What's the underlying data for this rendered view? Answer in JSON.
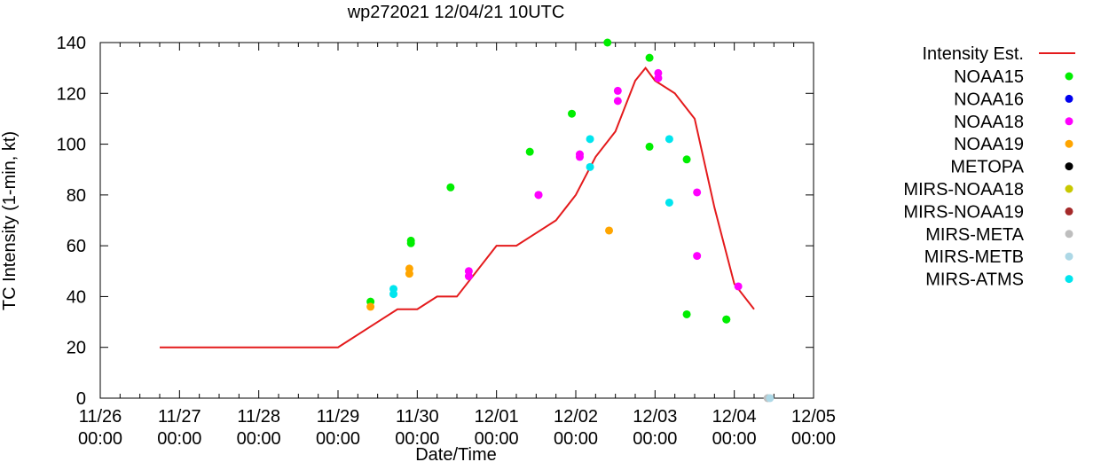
{
  "chart_data": {
    "type": "scatter",
    "title": "wp272021 12/04/21 10UTC",
    "xlabel": "Date/Time",
    "ylabel": "TC Intensity (1-min, kt)",
    "ylim": [
      0,
      140
    ],
    "yticks": [
      0,
      20,
      40,
      60,
      80,
      100,
      120,
      140
    ],
    "xlim_days": [
      0,
      9
    ],
    "xticks": [
      {
        "day": 0,
        "date": "11/26",
        "time": "00:00"
      },
      {
        "day": 1,
        "date": "11/27",
        "time": "00:00"
      },
      {
        "day": 2,
        "date": "11/28",
        "time": "00:00"
      },
      {
        "day": 3,
        "date": "11/29",
        "time": "00:00"
      },
      {
        "day": 4,
        "date": "11/30",
        "time": "00:00"
      },
      {
        "day": 5,
        "date": "12/01",
        "time": "00:00"
      },
      {
        "day": 6,
        "date": "12/02",
        "time": "00:00"
      },
      {
        "day": 7,
        "date": "12/03",
        "time": "00:00"
      },
      {
        "day": 8,
        "date": "12/04",
        "time": "00:00"
      },
      {
        "day": 9,
        "date": "12/05",
        "time": "00:00"
      }
    ],
    "line": {
      "name": "Intensity Est.",
      "color": "#e41a1c",
      "x": [
        0.75,
        2.0,
        3.0,
        3.5,
        3.75,
        4.0,
        4.25,
        4.5,
        5.0,
        5.25,
        5.5,
        5.75,
        6.0,
        6.25,
        6.5,
        6.75,
        6.88,
        7.0,
        7.25,
        7.5,
        7.75,
        8.0,
        8.25
      ],
      "y": [
        20,
        20,
        20,
        30,
        35,
        35,
        40,
        40,
        60,
        60,
        65,
        70,
        80,
        95,
        105,
        125,
        130,
        125,
        120,
        110,
        75,
        45,
        35
      ]
    },
    "series": [
      {
        "name": "NOAA15",
        "color": "#00ee00",
        "x": [
          3.41,
          3.92,
          3.92,
          4.42,
          5.42,
          5.95,
          6.4,
          6.93,
          6.93,
          7.4,
          7.4,
          7.9,
          7.9
        ],
        "y": [
          38,
          61,
          62,
          83,
          97,
          112,
          140,
          134,
          99,
          94,
          33,
          31,
          31
        ]
      },
      {
        "name": "NOAA16",
        "color": "#0000ee",
        "x": [],
        "y": []
      },
      {
        "name": "NOAA18",
        "color": "#ff00ff",
        "x": [
          4.65,
          4.65,
          5.53,
          5.53,
          6.05,
          6.05,
          6.53,
          6.53,
          7.04,
          7.04,
          7.53,
          7.53,
          8.05
        ],
        "y": [
          50,
          48,
          80,
          80,
          96,
          95,
          121,
          117,
          128,
          126,
          81,
          56,
          44
        ]
      },
      {
        "name": "NOAA19",
        "color": "#ffa500",
        "x": [
          3.41,
          3.9,
          3.9,
          6.42
        ],
        "y": [
          36,
          51,
          49,
          66
        ]
      },
      {
        "name": "METOPA",
        "color": "#000000",
        "x": [],
        "y": []
      },
      {
        "name": "MIRS-NOAA18",
        "color": "#c8c800",
        "x": [],
        "y": []
      },
      {
        "name": "MIRS-NOAA19",
        "color": "#a52a2a",
        "x": [],
        "y": []
      },
      {
        "name": "MIRS-META",
        "color": "#bebebe",
        "x": [
          8.42
        ],
        "y": [
          0
        ]
      },
      {
        "name": "MIRS-METB",
        "color": "#add8e6",
        "x": [
          8.45
        ],
        "y": [
          0
        ]
      },
      {
        "name": "MIRS-ATMS",
        "color": "#00e5ee",
        "x": [
          3.7,
          3.7,
          6.18,
          6.18,
          7.18,
          7.18
        ],
        "y": [
          43,
          41,
          102,
          91,
          102,
          77
        ]
      }
    ]
  }
}
